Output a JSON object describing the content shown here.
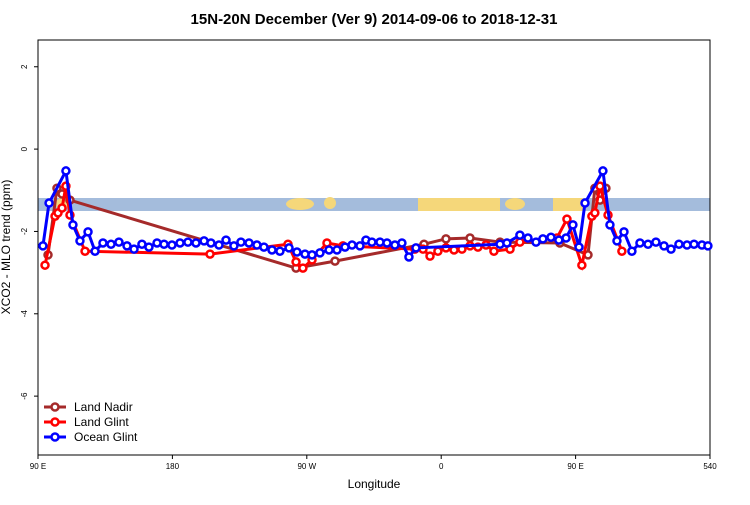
{
  "chart_data": {
    "type": "line",
    "title": "15N-20N December (Ver 9)   2014-09-06 to 2018-12-31",
    "x_label": "Longitude",
    "y_label": "XCO2 - MLO trend (ppm)",
    "xlim": [
      90,
      540
    ],
    "ylim": [
      -7.43,
      2.65
    ],
    "xticks": [
      {
        "value": 90,
        "label": "90 E"
      },
      180,
      {
        "value": 270,
        "label": "90 W"
      },
      {
        "value": 360,
        "label": "0"
      },
      {
        "value": 450,
        "label": "90 E"
      },
      540
    ],
    "yticks": [
      -6,
      -4,
      -2,
      0,
      2
    ],
    "legend": "bottom-left",
    "series": [
      {
        "name": "Land Nadir",
        "color": "#a52a2a",
        "x": [
          96.7,
          102.7,
          106.1,
          111.4,
          262.8,
          288.9,
          348.5,
          363.2,
          379.3,
          399.4,
          439.5,
          458.3,
          462.9,
          466.3,
          470.3
        ],
        "values": [
          -2.57,
          -0.95,
          -1.09,
          -1.24,
          -2.89,
          -2.72,
          -2.31,
          -2.18,
          -2.16,
          -2.26,
          -2.28,
          -2.57,
          -0.95,
          -1.24,
          -0.95
        ]
      },
      {
        "name": "Land Glint",
        "color": "#ff0000",
        "x": [
          94.7,
          101.4,
          103.4,
          106.1,
          108.7,
          111.4,
          121.5,
          205.2,
          257.4,
          262.8,
          267.4,
          273.5,
          283.5,
          294.2,
          342.4,
          347.8,
          352.5,
          357.8,
          363.2,
          368.6,
          373.9,
          379.3,
          384.6,
          390.0,
          395.3,
          406.1,
          412.7,
          437.5,
          444.2,
          454.2,
          460.9,
          462.9,
          466.3,
          471.7,
          481.0
        ],
        "values": [
          -2.82,
          -1.63,
          -1.55,
          -1.43,
          -0.9,
          -1.6,
          -2.48,
          -2.55,
          -2.31,
          -2.74,
          -2.89,
          -2.69,
          -2.28,
          -2.35,
          -2.43,
          -2.43,
          -2.6,
          -2.48,
          -2.4,
          -2.45,
          -2.43,
          -2.35,
          -2.38,
          -2.33,
          -2.48,
          -2.43,
          -2.26,
          -2.16,
          -1.7,
          -2.82,
          -1.63,
          -1.55,
          -0.9,
          -1.6,
          -2.48
        ]
      },
      {
        "name": "Ocean Glint",
        "color": "#0000ff",
        "x": [
          93.3,
          97.4,
          108.7,
          113.4,
          118.1,
          123.5,
          128.2,
          133.5,
          138.9,
          144.2,
          149.6,
          154.3,
          159.6,
          164.3,
          169.7,
          174.4,
          179.7,
          185.1,
          190.4,
          195.8,
          201.2,
          205.8,
          211.2,
          215.9,
          221.2,
          225.9,
          231.3,
          236.6,
          241.3,
          246.7,
          252.0,
          258.1,
          263.4,
          268.8,
          273.5,
          278.8,
          284.9,
          290.2,
          295.6,
          300.3,
          305.6,
          309.6,
          313.6,
          319.0,
          323.7,
          329.0,
          333.7,
          338.4,
          343.1,
          399.4,
          404.0,
          412.7,
          418.1,
          423.5,
          428.1,
          433.5,
          438.8,
          443.6,
          448.2,
          452.3,
          456.3,
          468.3,
          473.0,
          477.7,
          482.4,
          487.7,
          493.1,
          498.5,
          503.8,
          509.2,
          513.9,
          519.2,
          524.6,
          529.3,
          534.6,
          538.6
        ],
        "values": [
          -2.35,
          -1.31,
          -0.53,
          -1.84,
          -2.23,
          -2.01,
          -2.48,
          -2.28,
          -2.31,
          -2.26,
          -2.35,
          -2.43,
          -2.31,
          -2.38,
          -2.28,
          -2.31,
          -2.33,
          -2.28,
          -2.26,
          -2.28,
          -2.23,
          -2.28,
          -2.33,
          -2.21,
          -2.35,
          -2.26,
          -2.28,
          -2.33,
          -2.38,
          -2.45,
          -2.48,
          -2.4,
          -2.5,
          -2.55,
          -2.57,
          -2.52,
          -2.45,
          -2.45,
          -2.38,
          -2.33,
          -2.35,
          -2.21,
          -2.26,
          -2.26,
          -2.28,
          -2.33,
          -2.28,
          -2.62,
          -2.4,
          -2.31,
          -2.28,
          -2.09,
          -2.16,
          -2.26,
          -2.18,
          -2.14,
          -2.21,
          -2.16,
          -1.84,
          -2.38,
          -1.31,
          -0.53,
          -1.84,
          -2.23,
          -2.01,
          -2.48,
          -2.28,
          -2.31,
          -2.26,
          -2.35,
          -2.43,
          -2.31,
          -2.33,
          -2.31,
          -2.33,
          -2.35
        ]
      }
    ]
  }
}
